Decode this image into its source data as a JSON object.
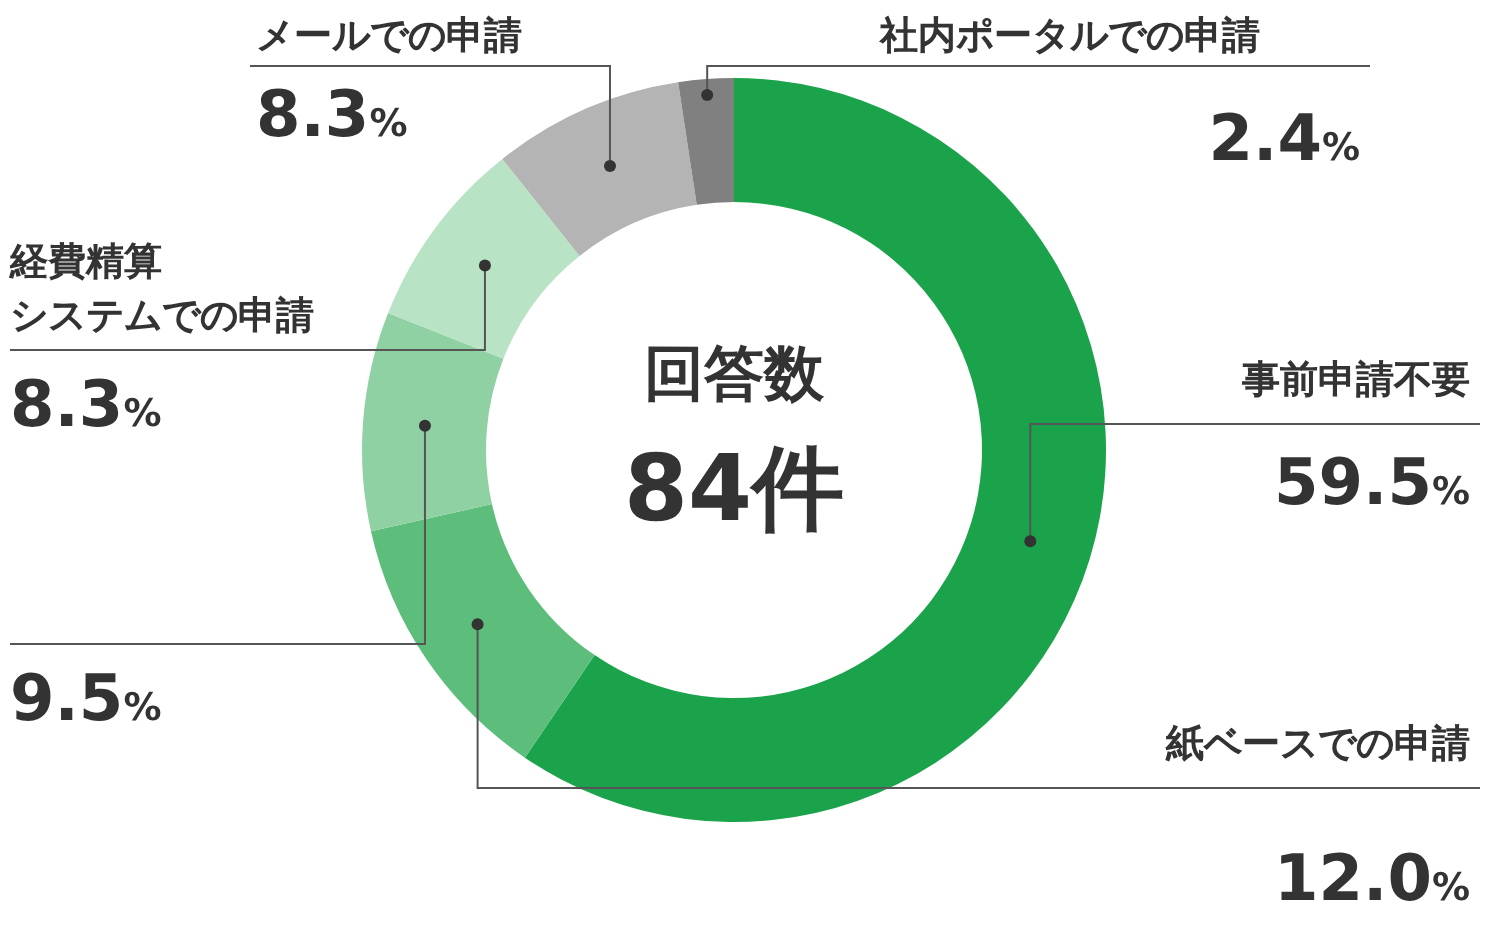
{
  "chart_data": {
    "type": "donut",
    "title": "回答数",
    "subtitle": "84件",
    "categories": [
      "事前申請不要",
      "紙ベースでの申請",
      null,
      "経費精算システムでの申請",
      "メールでの申請",
      "社内ポータルでの申請"
    ],
    "values": [
      59.5,
      12.0,
      9.5,
      8.3,
      8.3,
      2.4
    ],
    "value_labels": [
      "59.5%",
      "12.0%",
      "9.5%",
      "8.3%",
      "8.3%",
      "2.4%"
    ],
    "colors": [
      "#1aa34a",
      "#5dbe7b",
      "#8fd1a2",
      "#b9e3c5",
      "#b4b4b4",
      "#808080"
    ]
  }
}
